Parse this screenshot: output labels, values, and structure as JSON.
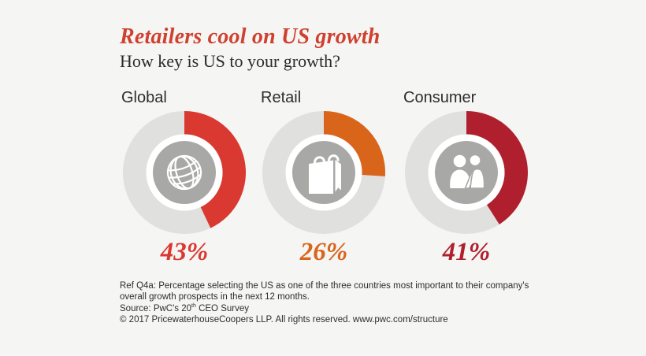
{
  "page": {
    "background_color": "#f5f5f4"
  },
  "header": {
    "title": "Retailers cool on US growth",
    "title_color": "#d0402f",
    "subtitle": "How key is US to your growth?"
  },
  "chart_data": {
    "type": "donut",
    "title": "How key is US to your growth?",
    "unit": "%",
    "categories": [
      "Global",
      "Retail",
      "Consumer"
    ],
    "values": [
      43,
      26,
      41
    ],
    "series": [
      {
        "label": "Global",
        "value": 43,
        "display": "43%",
        "color": "#d93931",
        "icon": "globe-icon"
      },
      {
        "label": "Retail",
        "value": 26,
        "display": "26%",
        "color": "#d9651b",
        "icon": "shopping-bag-icon"
      },
      {
        "label": "Consumer",
        "value": 41,
        "display": "41%",
        "color": "#b01f2e",
        "icon": "people-icon"
      }
    ],
    "track_color": "#e0e0df",
    "icon_disc_color": "#a8a8a7",
    "arc_start": "top",
    "arc_direction": "clockwise"
  },
  "footer": {
    "note_line1": "Ref Q4a: Percentage selecting the US as one of the three countries most important to their company's",
    "note_line2": "overall growth prospects in the next 12 months.",
    "source_prefix": "Source: PwC's 20",
    "source_sup": "th",
    "source_suffix": " CEO Survey",
    "copyright": "© 2017 PricewaterhouseCoopers LLP. All rights reserved. www.pwc.com/structure"
  }
}
